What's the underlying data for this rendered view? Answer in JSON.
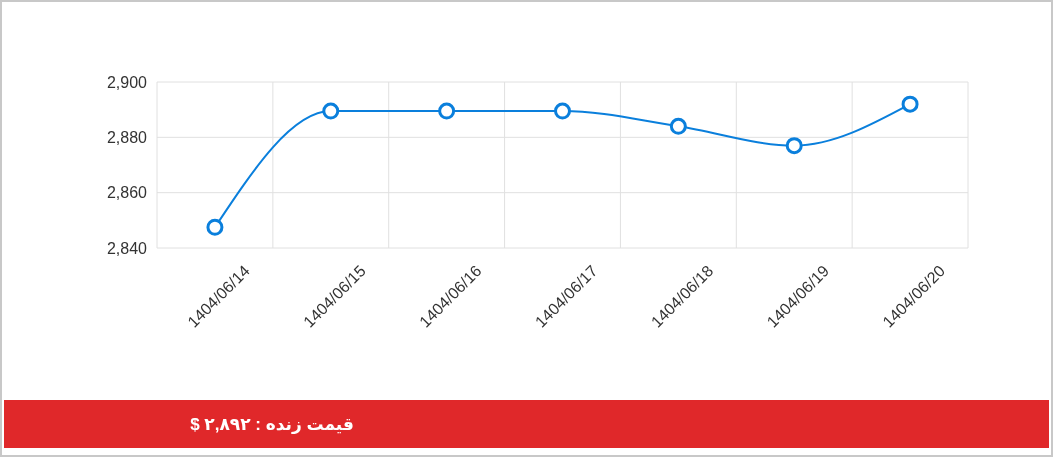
{
  "chart_data": {
    "type": "line",
    "categories": [
      "1404/06/14",
      "1404/06/15",
      "1404/06/16",
      "1404/06/17",
      "1404/06/18",
      "1404/06/19",
      "1404/06/20"
    ],
    "series": [
      {
        "color": "#0a7fdc",
        "values": [
          2847.5,
          2889.5,
          2889.5,
          2889.5,
          2884,
          2877,
          2892
        ]
      }
    ],
    "ylim": [
      2840,
      2900
    ],
    "yticks": [
      {
        "value": 2840,
        "label": "2,840"
      },
      {
        "value": 2860,
        "label": "2,860"
      },
      {
        "value": 2880,
        "label": "2,880"
      },
      {
        "value": 2900,
        "label": "2,900"
      }
    ],
    "grid": true,
    "marker": "circle",
    "annotations": [
      "قیمت زنده : ۲,۸۹۲ $"
    ]
  }
}
